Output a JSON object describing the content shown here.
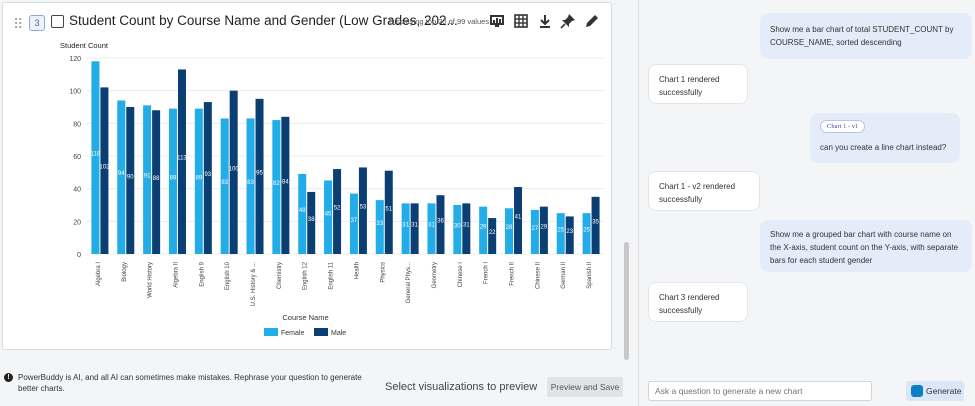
{
  "card": {
    "index": "3",
    "title": "Student Count by Course Name and Gender (Low Grades, 202...",
    "display_info": "Displaying top 20 of 99 values",
    "toolbar_icons": [
      "chart-view-icon",
      "table-icon",
      "download-icon",
      "pin-icon",
      "edit-icon"
    ]
  },
  "chart_data": {
    "type": "bar",
    "title": "",
    "ylabel": "Student Count",
    "xlabel": "Course Name",
    "ylim": [
      0,
      120
    ],
    "yticks": [
      0,
      20,
      40,
      60,
      80,
      100,
      120
    ],
    "grid": true,
    "legend": "bottom-center",
    "categories": [
      "Algebra I",
      "Biology",
      "World History",
      "Algebra II",
      "English 9",
      "English 10",
      "U.S. History & ...",
      "Chemistry",
      "English 12",
      "English 11",
      "Health",
      "Physics",
      "General Phys...",
      "Geometry",
      "Chinese I",
      "French I",
      "French II",
      "Chinese II",
      "German II",
      "Spanish II"
    ],
    "series": [
      {
        "name": "Female",
        "color": "#22ace8",
        "values": [
          118,
          94,
          91,
          89,
          89,
          83,
          83,
          82,
          49,
          45,
          37,
          33,
          31,
          31,
          30,
          29,
          28,
          27,
          25,
          25
        ]
      },
      {
        "name": "Male",
        "color": "#0b3f73",
        "values": [
          102,
          90,
          88,
          113,
          93,
          100,
          95,
          84,
          38,
          52,
          53,
          51,
          31,
          36,
          31,
          22,
          41,
          29,
          23,
          35
        ]
      }
    ]
  },
  "footer": {
    "disclaimer": "PowerBuddy is AI, and all AI can sometimes make mistakes. Rephrase your question to generate better charts.",
    "select_vis": "Select visualizations to preview",
    "preview_save": "Preview and Save"
  },
  "chat": {
    "m1": "Show me a bar chart of total STUDENT_COUNT by COURSE_NAME, sorted descending",
    "m2": "Chart 1 rendered successfully",
    "m3_chip": "Chart 1 - v1",
    "m3": "can you create a line chart instead?",
    "m4": "Chart 1 - v2 rendered successfully",
    "m5": "Show me a grouped bar chart with course name on the X-axis, student count on the Y-axis, with separate bars for each student gender",
    "m6": "Chart 3 rendered successfully",
    "input_placeholder": "Ask a question to generate a new chart",
    "generate_label": "Generate"
  }
}
